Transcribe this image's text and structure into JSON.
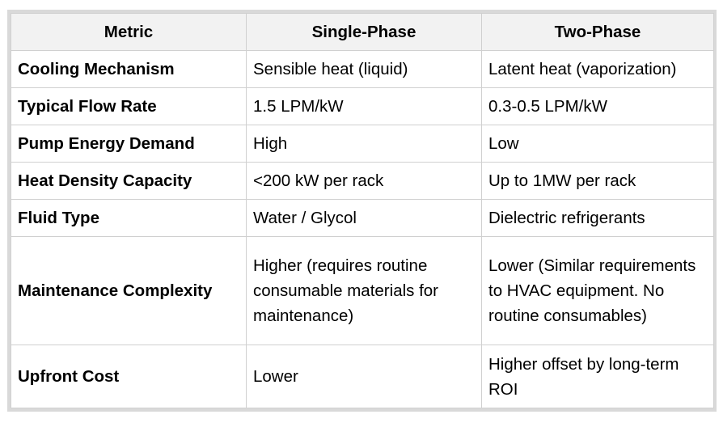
{
  "table": {
    "headers": [
      "Metric",
      "Single-Phase",
      "Two-Phase"
    ],
    "rows": [
      {
        "metric": "Cooling Mechanism",
        "single": "Sensible heat (liquid)",
        "two": "Latent heat (vaporization)"
      },
      {
        "metric": "Typical Flow Rate",
        "single": "1.5 LPM/kW",
        "two": "0.3-0.5 LPM/kW"
      },
      {
        "metric": "Pump Energy Demand",
        "single": "High",
        "two": "Low"
      },
      {
        "metric": "Heat Density Capacity",
        "single": "<200 kW per rack",
        "two": "Up to 1MW per rack"
      },
      {
        "metric": "Fluid Type",
        "single": "Water / Glycol",
        "two": "Dielectric refrigerants"
      },
      {
        "metric": "Maintenance Complexity",
        "single": "Higher (requires routine consumable materials for maintenance)",
        "two": "Lower (Similar requirements to HVAC equipment. No routine consumables)"
      },
      {
        "metric": "Upfront Cost",
        "single": "Lower",
        "two": "Higher offset by long-term ROI"
      }
    ]
  }
}
